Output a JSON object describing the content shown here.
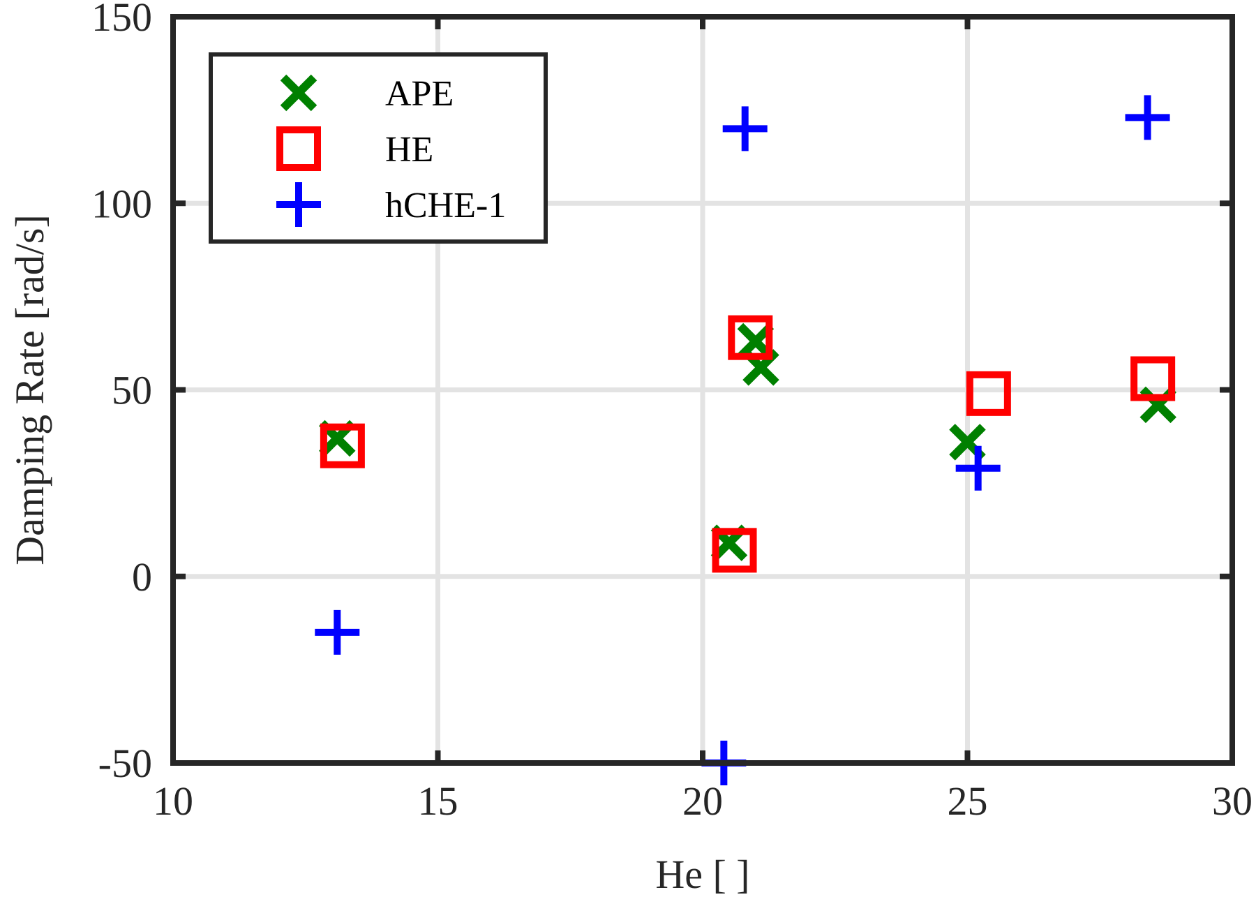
{
  "chart_data": {
    "type": "scatter",
    "xlabel": "He [ ]",
    "ylabel": "Damping Rate [rad/s]",
    "xlim": [
      10,
      30
    ],
    "ylim": [
      -50,
      150
    ],
    "xticks": [
      10,
      15,
      20,
      25,
      30
    ],
    "yticks": [
      -50,
      0,
      50,
      100,
      150
    ],
    "xtick_labels": [
      "10",
      "15",
      "20",
      "25",
      "30"
    ],
    "ytick_labels": [
      "-50",
      "0",
      "50",
      "100",
      "150"
    ],
    "grid": true,
    "legend_position": "top-left",
    "series": [
      {
        "name": "APE",
        "marker": "x",
        "color": "#008000",
        "points": [
          {
            "x": 13.1,
            "y": 37
          },
          {
            "x": 20.5,
            "y": 9
          },
          {
            "x": 21.0,
            "y": 63
          },
          {
            "x": 21.1,
            "y": 56
          },
          {
            "x": 25.0,
            "y": 36
          },
          {
            "x": 28.6,
            "y": 46
          }
        ]
      },
      {
        "name": "HE",
        "marker": "square",
        "color": "#ff0000",
        "points": [
          {
            "x": 13.2,
            "y": 35
          },
          {
            "x": 20.6,
            "y": 7
          },
          {
            "x": 20.9,
            "y": 64
          },
          {
            "x": 25.4,
            "y": 49
          },
          {
            "x": 28.5,
            "y": 53
          }
        ]
      },
      {
        "name": "hCHE-1",
        "marker": "plus",
        "color": "#0000ff",
        "points": [
          {
            "x": 13.1,
            "y": -15
          },
          {
            "x": 20.4,
            "y": -50
          },
          {
            "x": 20.8,
            "y": 120
          },
          {
            "x": 25.2,
            "y": 29
          },
          {
            "x": 28.4,
            "y": 123
          }
        ]
      }
    ]
  }
}
